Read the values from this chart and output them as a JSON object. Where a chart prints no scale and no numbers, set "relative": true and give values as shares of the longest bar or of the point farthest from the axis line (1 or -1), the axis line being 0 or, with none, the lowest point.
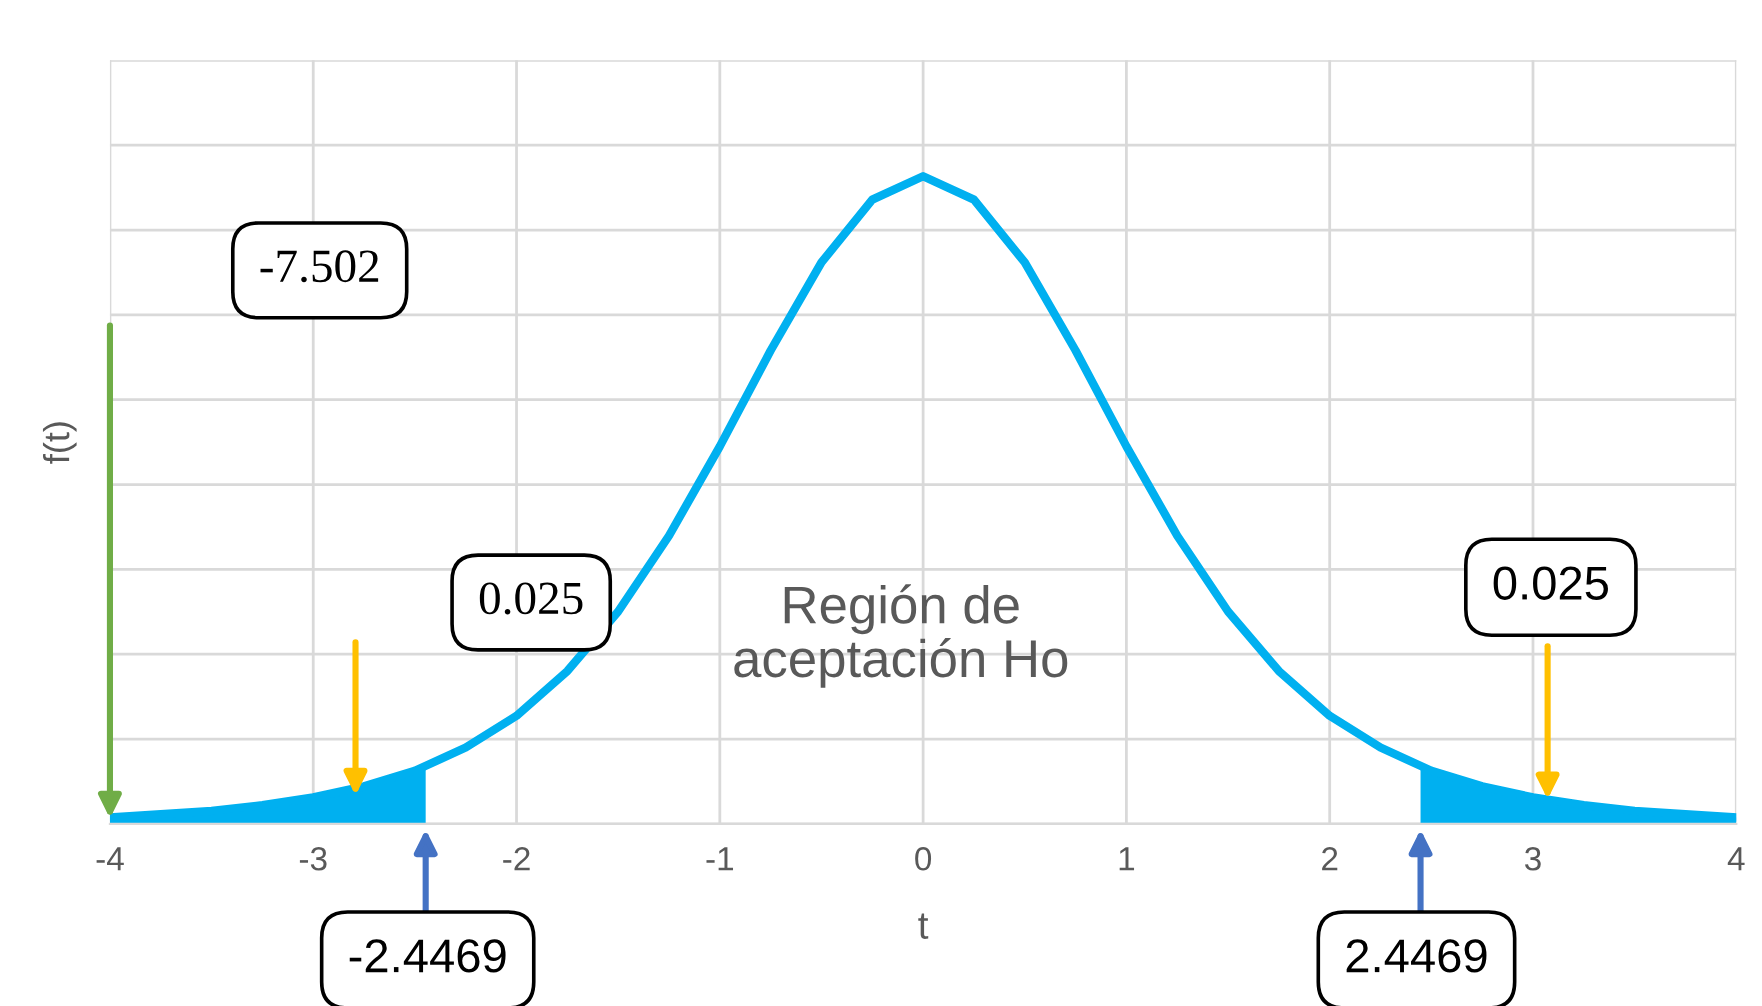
{
  "chart_data": {
    "type": "line",
    "xlabel": "t",
    "ylabel": "f(t)",
    "relative": true,
    "xlim": [
      -4,
      4
    ],
    "xticks": [
      -4,
      -3,
      -2,
      -1,
      0,
      1,
      2,
      3,
      4
    ],
    "grid": true,
    "marker": "none",
    "line_style": "solid",
    "series": [
      {
        "color": "#00b0f0",
        "x": [
          -4,
          -3.75,
          -3.5,
          -3.25,
          -3,
          -2.75,
          -2.5,
          -2.25,
          -2,
          -1.75,
          -1.5,
          -1.25,
          -1,
          -0.75,
          -0.5,
          -0.25,
          0,
          0.25,
          0.5,
          0.75,
          1,
          1.25,
          1.5,
          1.75,
          2,
          2.25,
          2.5,
          2.75,
          3,
          3.25,
          3.5,
          3.75,
          4
        ],
        "values": [
          0.01,
          0.015,
          0.02,
          0.029,
          0.041,
          0.058,
          0.082,
          0.118,
          0.167,
          0.236,
          0.328,
          0.445,
          0.583,
          0.731,
          0.867,
          0.964,
          1,
          0.964,
          0.867,
          0.731,
          0.583,
          0.445,
          0.328,
          0.236,
          0.167,
          0.118,
          0.082,
          0.058,
          0.041,
          0.029,
          0.02,
          0.015,
          0.01
        ]
      },
      {
        "type": "area",
        "color": "#00b0f0",
        "x": [
          -4,
          -3.75,
          -3.5,
          -3.25,
          -3,
          -2.75,
          -2.5,
          -2.4469
        ],
        "values": [
          0.01,
          0.015,
          0.02,
          0.029,
          0.041,
          0.058,
          0.082,
          0.089
        ]
      },
      {
        "type": "area",
        "color": "#00b0f0",
        "x": [
          2.4469,
          2.5,
          2.75,
          3,
          3.25,
          3.5,
          3.75,
          4
        ],
        "values": [
          0.089,
          0.082,
          0.058,
          0.041,
          0.029,
          0.02,
          0.015,
          0.01
        ]
      }
    ],
    "annotations": [
      "-7.502",
      "0.025",
      "Región de\naceptación Ho",
      "0.025",
      {
        "text": "-2.4469",
        "x": -2.4469,
        "y": 0
      },
      {
        "text": "2.4469",
        "x": 2.4469,
        "y": 0
      }
    ]
  }
}
